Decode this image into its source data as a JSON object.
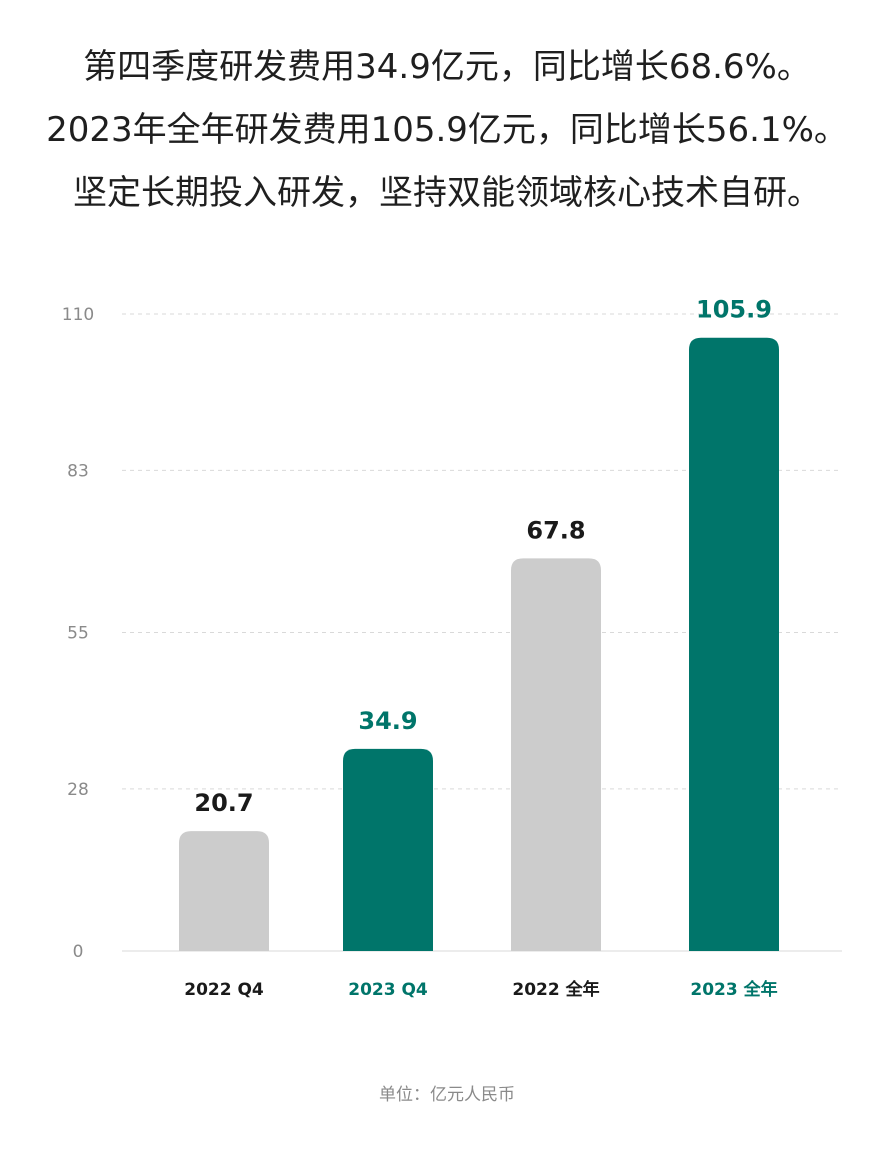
{
  "headline": {
    "line1": "第四季度研发费用34.9亿元，同比增长68.6%。",
    "line2": "2023年全年研发费用105.9亿元，同比增长56.1%。",
    "line3": "坚定长期投入研发，坚持双能领域核心技术自研。"
  },
  "unit_note": "单位：亿元人民币",
  "colors": {
    "accent": "#00756a",
    "gray_bar": "#cccccc",
    "dark_text": "#1a1a1a",
    "tick_text": "#8a8a8a",
    "grid": "#d9d9d9"
  },
  "chart_data": {
    "type": "bar",
    "categories": [
      "2022 Q4",
      "2023 Q4",
      "2022 全年",
      "2023 全年"
    ],
    "values": [
      20.7,
      34.9,
      67.8,
      105.9
    ],
    "value_labels": [
      "20.7",
      "34.9",
      "67.8",
      "105.9"
    ],
    "highlight": [
      false,
      true,
      false,
      true
    ],
    "yticks": [
      "0",
      "28",
      "55",
      "83",
      "110"
    ],
    "ylim": [
      0,
      110
    ],
    "grid": true,
    "title": "",
    "xlabel": "",
    "ylabel": ""
  }
}
